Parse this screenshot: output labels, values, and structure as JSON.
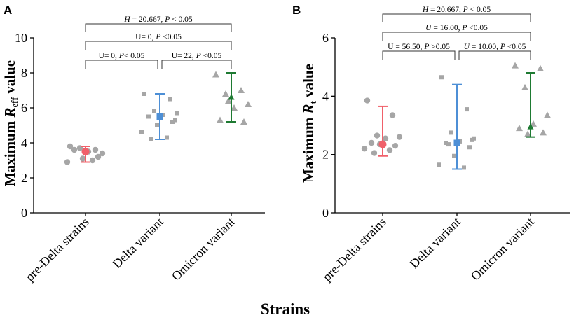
{
  "x_title": "Strains",
  "chart_data": [
    {
      "panel": "A",
      "type": "scatter",
      "ylabel_main": "Maximum ",
      "ylabel_italic": "R",
      "ylabel_sub": "eff",
      "ylabel_tail": " value",
      "ylim": [
        0,
        10
      ],
      "yticks": [
        "0",
        "2",
        "4",
        "6",
        "8",
        "10"
      ],
      "categories": [
        "pre-Delta strains",
        "Delta variant",
        "Omicron variant"
      ],
      "series": [
        {
          "name": "pre-Delta strains",
          "color": "#f0606a",
          "marker": "circle",
          "mean": 3.5,
          "sd_low": 2.9,
          "sd_high": 3.8,
          "points": [
            3.8,
            3.6,
            3.7,
            3.4,
            3.5,
            3.6,
            3.2,
            3.1,
            2.9,
            3.0
          ]
        },
        {
          "name": "Delta variant",
          "color": "#4d8fd6",
          "marker": "square",
          "mean": 5.5,
          "sd_low": 4.2,
          "sd_high": 6.8,
          "points": [
            6.8,
            6.5,
            5.8,
            5.7,
            5.6,
            5.5,
            5.2,
            5.0,
            4.6,
            4.3,
            4.2,
            5.3
          ]
        },
        {
          "name": "Omicron variant",
          "color": "#1e7a32",
          "marker": "triangle",
          "mean": 6.6,
          "sd_low": 5.2,
          "sd_high": 8.0,
          "points": [
            7.9,
            7.0,
            6.8,
            6.2,
            6.0,
            5.3,
            5.2,
            6.4
          ]
        }
      ],
      "brackets": [
        {
          "from": 0,
          "to": 2,
          "level": 3,
          "prefix_italic": "H",
          "text": " = 20.667, ",
          "p_italic": "P",
          "p_text": " < 0.05"
        },
        {
          "from": 0,
          "to": 2,
          "level": 2,
          "prefix_italic": "",
          "text": "U= 0, ",
          "p_italic": "P",
          "p_text": " <0.05"
        },
        {
          "from": 0,
          "to": 1,
          "level": 1,
          "prefix_italic": "",
          "text": "U= 0, ",
          "p_italic": "P",
          "p_text": "< 0.05"
        },
        {
          "from": 1,
          "to": 2,
          "level": 1,
          "prefix_italic": "",
          "text": "U= 22, ",
          "p_italic": "P",
          "p_text": " <0.05"
        }
      ]
    },
    {
      "panel": "B",
      "type": "scatter",
      "ylabel_main": "Maximum ",
      "ylabel_italic": "R",
      "ylabel_sub": "t",
      "ylabel_tail": " value",
      "ylim": [
        0,
        6
      ],
      "yticks": [
        "0",
        "2",
        "4",
        "6"
      ],
      "categories": [
        "pre-Delta strains",
        "Delta variant",
        "Omicron variant"
      ],
      "series": [
        {
          "name": "pre-Delta strains",
          "color": "#f0606a",
          "marker": "circle",
          "mean": 2.35,
          "sd_low": 1.95,
          "sd_high": 3.65,
          "points": [
            3.85,
            3.35,
            2.65,
            2.6,
            2.55,
            2.4,
            2.3,
            2.35,
            2.2,
            2.15,
            2.05
          ]
        },
        {
          "name": "Delta variant",
          "color": "#4d8fd6",
          "marker": "square",
          "mean": 2.4,
          "sd_low": 1.5,
          "sd_high": 4.4,
          "points": [
            4.65,
            3.55,
            2.75,
            2.55,
            2.45,
            2.4,
            2.25,
            1.95,
            1.65,
            1.55,
            2.35,
            2.5
          ]
        },
        {
          "name": "Omicron variant",
          "color": "#1e7a32",
          "marker": "triangle",
          "mean": 2.95,
          "sd_low": 2.6,
          "sd_high": 4.8,
          "points": [
            5.05,
            4.95,
            4.3,
            3.35,
            3.05,
            2.9,
            2.75,
            2.7
          ]
        }
      ],
      "brackets": [
        {
          "from": 0,
          "to": 2,
          "level": 3,
          "prefix_italic": "H",
          "text": " = 20.667, ",
          "p_italic": "P",
          "p_text": " < 0.05"
        },
        {
          "from": 0,
          "to": 2,
          "level": 2,
          "prefix_italic": "U",
          "text": " = 16.00, ",
          "p_italic": "P",
          "p_text": " <0.05"
        },
        {
          "from": 0,
          "to": 1,
          "level": 1,
          "prefix_italic": "",
          "text": "U = 56.50, ",
          "p_italic": "P",
          "p_text": " >0.05"
        },
        {
          "from": 1,
          "to": 2,
          "level": 1,
          "prefix_italic": "U",
          "text": " = 10.00, ",
          "p_italic": "P",
          "p_text": " <0.05"
        }
      ]
    }
  ]
}
